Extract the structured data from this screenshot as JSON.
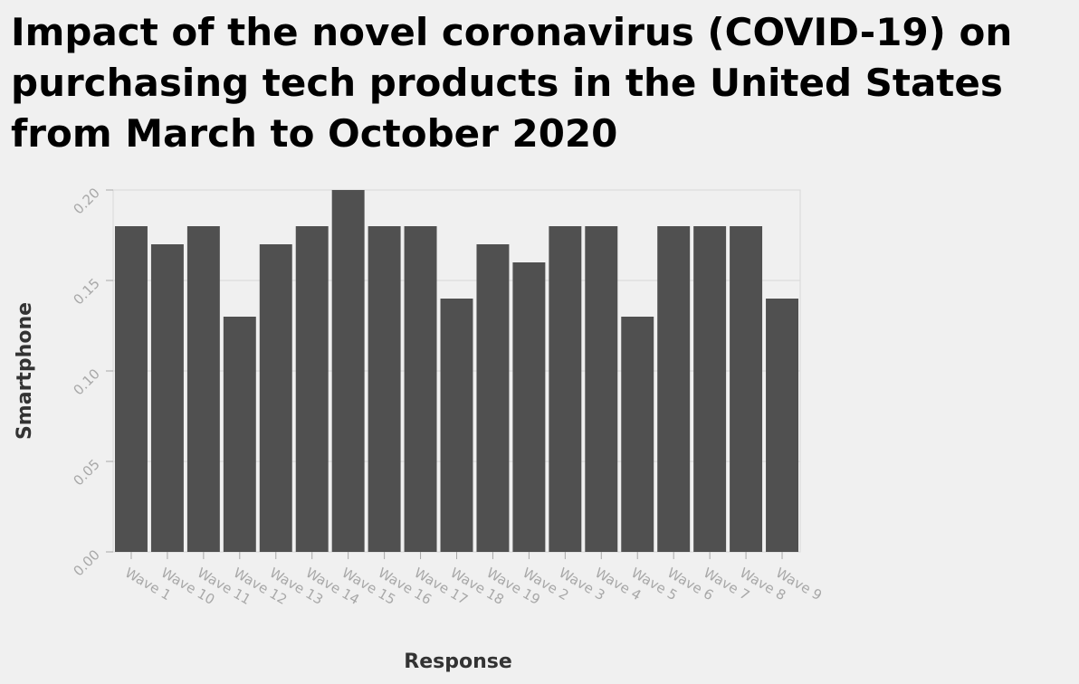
{
  "chart_data": {
    "type": "bar",
    "title": "Impact of the novel coronavirus (COVID-19) on purchasing tech products in the United States from March to October 2020",
    "xlabel": "Response",
    "ylabel": "Smartphone",
    "ylim": [
      0,
      0.2
    ],
    "yticks": [
      "0.00",
      "0.05",
      "0.10",
      "0.15",
      "0.20"
    ],
    "grid": true,
    "categories": [
      "Wave 1",
      "Wave 10",
      "Wave 11",
      "Wave 12",
      "Wave 13",
      "Wave 14",
      "Wave 15",
      "Wave 16",
      "Wave 17",
      "Wave 18",
      "Wave 19",
      "Wave 2",
      "Wave 3",
      "Wave 4",
      "Wave 5",
      "Wave 6",
      "Wave 7",
      "Wave 8",
      "Wave 9"
    ],
    "values": [
      0.18,
      0.17,
      0.18,
      0.13,
      0.17,
      0.18,
      0.2,
      0.18,
      0.18,
      0.14,
      0.17,
      0.16,
      0.18,
      0.18,
      0.13,
      0.18,
      0.18,
      0.18,
      0.14
    ],
    "colors": {
      "bar": "#505050",
      "grid": "#d8d8d8",
      "background": "#f0f0f0",
      "tick": "#a8a8a8"
    }
  }
}
